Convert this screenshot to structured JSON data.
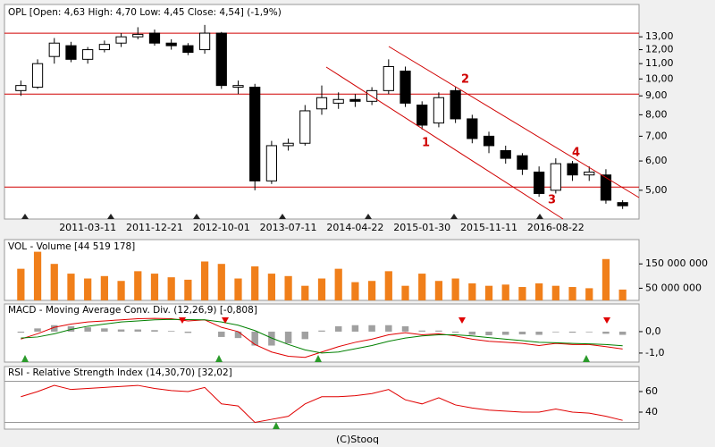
{
  "chart_data": [
    {
      "type": "candlestick",
      "title": "OPL [Open: 4,63  High: 4,70  Low: 4,45  Close: 4,54] (-1,9%)",
      "categories": [
        null,
        null,
        null,
        null,
        "2011-03-11",
        null,
        null,
        null,
        "2011-12-21",
        null,
        null,
        null,
        "2012-10-01",
        null,
        null,
        null,
        "2013-07-11",
        null,
        null,
        null,
        "2014-04-22",
        null,
        null,
        null,
        "2015-01-30",
        null,
        null,
        null,
        "2015-11-11",
        null,
        null,
        null,
        "2016-08-22",
        null,
        null,
        null,
        null
      ],
      "open": [
        9.3,
        9.5,
        11.5,
        12.3,
        11.3,
        12.0,
        12.5,
        13.0,
        13.3,
        12.5,
        12.3,
        12.0,
        13.3,
        9.5,
        9.5,
        5.3,
        6.6,
        6.7,
        8.3,
        8.6,
        8.8,
        8.7,
        9.3,
        10.5,
        8.5,
        7.6,
        9.3,
        7.8,
        7.0,
        6.4,
        6.2,
        5.6,
        5.0,
        5.9,
        5.5,
        5.5,
        4.63
      ],
      "high": [
        9.9,
        11.3,
        12.9,
        12.6,
        12.2,
        12.7,
        13.3,
        13.8,
        13.6,
        12.8,
        12.5,
        14.0,
        13.4,
        9.9,
        9.7,
        6.8,
        6.9,
        8.5,
        9.6,
        9.2,
        9.1,
        9.5,
        11.3,
        10.8,
        8.7,
        9.2,
        9.5,
        8.0,
        7.2,
        6.6,
        6.3,
        5.8,
        6.1,
        6.0,
        5.8,
        5.7,
        4.7
      ],
      "low": [
        9.0,
        9.4,
        11.0,
        11.1,
        11.0,
        11.8,
        12.2,
        12.8,
        12.3,
        12.0,
        11.6,
        11.7,
        9.4,
        9.1,
        5.0,
        5.2,
        6.4,
        6.6,
        8.0,
        8.3,
        8.4,
        8.5,
        9.1,
        8.4,
        7.3,
        7.4,
        7.6,
        6.7,
        6.3,
        5.9,
        5.5,
        4.8,
        4.9,
        5.3,
        5.3,
        4.6,
        4.45
      ],
      "close": [
        9.6,
        11.0,
        12.5,
        11.3,
        12.0,
        12.4,
        13.0,
        13.2,
        12.5,
        12.3,
        11.8,
        13.3,
        9.6,
        9.6,
        5.3,
        6.6,
        6.7,
        8.2,
        8.9,
        8.8,
        8.7,
        9.3,
        10.8,
        8.6,
        7.5,
        8.9,
        7.8,
        6.9,
        6.6,
        6.1,
        5.7,
        4.9,
        5.9,
        5.5,
        5.6,
        4.7,
        4.54
      ],
      "log_scale": true,
      "ylim": [
        4.18,
        15.9
      ],
      "yticks": [
        {
          "value": 5,
          "label": "5,00"
        },
        {
          "value": 6,
          "label": "6,00"
        },
        {
          "value": 7,
          "label": "7,00"
        },
        {
          "value": 8,
          "label": "8,00"
        },
        {
          "value": 9,
          "label": "9,00"
        },
        {
          "value": 10,
          "label": "10,00"
        },
        {
          "value": 11,
          "label": "11,00"
        },
        {
          "value": 12,
          "label": "12,00"
        },
        {
          "value": 13,
          "label": "13,00"
        }
      ],
      "hlines": [
        13.3,
        9.1,
        5.1
      ],
      "annotations": [
        "1",
        "2",
        "3",
        "4"
      ]
    },
    {
      "type": "bar",
      "title": "VOL - Volume [44 519 178]",
      "color": "#f07f1a",
      "values": [
        130000000,
        200000000,
        150000000,
        110000000,
        90000000,
        100000000,
        80000000,
        120000000,
        110000000,
        95000000,
        85000000,
        160000000,
        150000000,
        90000000,
        140000000,
        110000000,
        100000000,
        60000000,
        90000000,
        130000000,
        75000000,
        80000000,
        120000000,
        60000000,
        110000000,
        80000000,
        90000000,
        70000000,
        60000000,
        65000000,
        55000000,
        70000000,
        60000000,
        55000000,
        50000000,
        170000000,
        44519178
      ],
      "ylim": [
        0,
        250000000
      ],
      "yticks": [
        {
          "value": 50000000,
          "label": "50 000 000"
        },
        {
          "value": 150000000,
          "label": "150 000 000"
        }
      ]
    },
    {
      "type": "line",
      "title": "MACD - Moving Average Conv. Div. (12,26,9) [-0,808]",
      "series": [
        {
          "color": "#e00000",
          "values": [
            -0.35,
            -0.1,
            0.2,
            0.35,
            0.45,
            0.5,
            0.55,
            0.6,
            0.62,
            0.6,
            0.5,
            0.55,
            0.2,
            0.0,
            -0.6,
            -0.95,
            -1.15,
            -1.2,
            -0.95,
            -0.7,
            -0.5,
            -0.35,
            -0.15,
            -0.05,
            -0.15,
            -0.1,
            -0.2,
            -0.35,
            -0.45,
            -0.5,
            -0.55,
            -0.65,
            -0.55,
            -0.6,
            -0.6,
            -0.7,
            -0.808
          ]
        },
        {
          "color": "#008000",
          "values": [
            -0.3,
            -0.25,
            -0.1,
            0.1,
            0.25,
            0.35,
            0.45,
            0.5,
            0.55,
            0.57,
            0.56,
            0.55,
            0.45,
            0.3,
            0.05,
            -0.3,
            -0.6,
            -0.85,
            -1.0,
            -0.95,
            -0.8,
            -0.65,
            -0.45,
            -0.3,
            -0.2,
            -0.15,
            -0.15,
            -0.2,
            -0.28,
            -0.35,
            -0.42,
            -0.5,
            -0.52,
            -0.55,
            -0.57,
            -0.6,
            -0.66
          ]
        }
      ],
      "histogram": {
        "color": "#a0a0a0",
        "values": [
          -0.05,
          0.15,
          0.3,
          0.25,
          0.2,
          0.15,
          0.1,
          0.1,
          0.07,
          0.03,
          -0.06,
          0,
          -0.25,
          -0.3,
          -0.65,
          -0.65,
          -0.55,
          -0.35,
          0.05,
          0.25,
          0.3,
          0.3,
          0.3,
          0.25,
          0.05,
          0.05,
          -0.05,
          -0.15,
          -0.17,
          -0.15,
          -0.13,
          -0.15,
          -0.03,
          -0.05,
          -0.03,
          -0.1,
          -0.15
        ]
      },
      "ylim": [
        -1.42,
        1.29
      ],
      "yticks": [
        {
          "value": -1,
          "label": "-1,0"
        },
        {
          "value": 0,
          "label": "0,0"
        }
      ]
    },
    {
      "type": "line",
      "title": "RSI - Relative Strength Index (14,30,70) [32,02]",
      "series": [
        {
          "color": "#e00000",
          "values": [
            55,
            60,
            66,
            62,
            63,
            64,
            65,
            66,
            63,
            61,
            60,
            64,
            48,
            46,
            30,
            33,
            36,
            48,
            55,
            55,
            56,
            58,
            62,
            52,
            48,
            54,
            47,
            44,
            42,
            41,
            40,
            40,
            43,
            40,
            39,
            36,
            32.02
          ]
        }
      ],
      "ylim": [
        23.5,
        84.3
      ],
      "yticks": [
        40,
        60
      ],
      "hlines": [
        70,
        30
      ]
    }
  ],
  "footer": "(C)Stooq"
}
